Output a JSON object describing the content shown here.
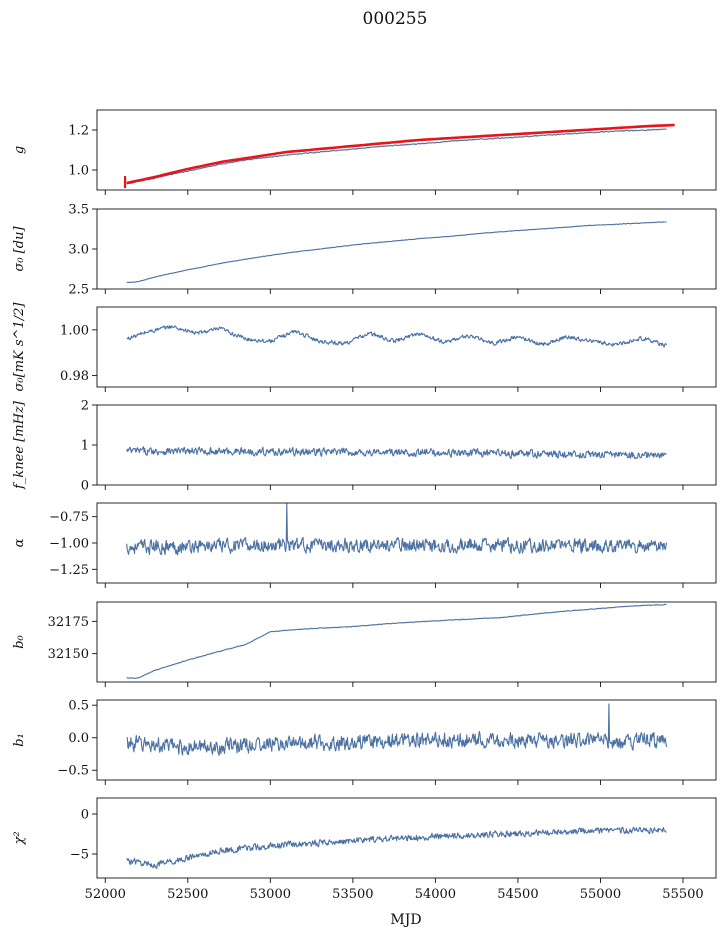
{
  "title": "000255",
  "colors": {
    "series": "#4c72a4",
    "fit": "#e8141a",
    "axis": "#111111"
  },
  "chart_data": [
    {
      "type": "line",
      "id": "g",
      "ylabel": "g",
      "ylim": [
        0.9,
        1.3
      ],
      "yticks": [
        1.0,
        1.2
      ],
      "ytick_labels": [
        "1.0",
        "1.2"
      ],
      "series": [
        {
          "x": [
            52130,
            52300,
            52500,
            52700,
            52900,
            53100,
            53300,
            53500,
            53700,
            53900,
            54100,
            54300,
            54500,
            54700,
            54900,
            55100,
            55300,
            55400
          ],
          "values": [
            0.93,
            0.96,
            0.995,
            1.03,
            1.055,
            1.075,
            1.09,
            1.105,
            1.12,
            1.13,
            1.145,
            1.155,
            1.165,
            1.175,
            1.185,
            1.195,
            1.2,
            1.205
          ],
          "color": "#4c72a4",
          "noise": 0.003
        },
        {
          "x": [
            52130,
            52300,
            52500,
            52700,
            52900,
            53100,
            53300,
            53500,
            53700,
            53900,
            54100,
            54300,
            54500,
            54700,
            54900,
            55100,
            55300,
            55450
          ],
          "values": [
            0.935,
            0.965,
            1.005,
            1.04,
            1.065,
            1.09,
            1.105,
            1.12,
            1.135,
            1.15,
            1.16,
            1.17,
            1.18,
            1.19,
            1.2,
            1.21,
            1.22,
            1.225
          ],
          "color": "#e8141a",
          "width": 2.6,
          "noise": 0
        }
      ],
      "errorbar": {
        "x": 52120,
        "y": 0.94,
        "err": 0.03
      }
    },
    {
      "type": "line",
      "id": "sigma0_du",
      "ylabel": "σ₀ [du]",
      "ylim": [
        2.5,
        3.5
      ],
      "yticks": [
        2.5,
        3.0,
        3.5
      ],
      "ytick_labels": [
        "2.5",
        "3.0",
        "3.5"
      ],
      "series": [
        {
          "x": [
            52130,
            52200,
            52300,
            52500,
            52700,
            52900,
            53100,
            53300,
            53500,
            53700,
            53900,
            54100,
            54300,
            54500,
            54700,
            54900,
            55100,
            55300,
            55400
          ],
          "values": [
            2.58,
            2.59,
            2.65,
            2.74,
            2.82,
            2.89,
            2.95,
            3.0,
            3.05,
            3.09,
            3.13,
            3.16,
            3.2,
            3.23,
            3.26,
            3.29,
            3.31,
            3.33,
            3.34
          ],
          "color": "#4c72a4",
          "noise": 0.004
        }
      ]
    },
    {
      "type": "line",
      "id": "sigma0_mK",
      "ylabel": "σ₀[mK s^1/2]",
      "ylim": [
        0.975,
        1.01
      ],
      "yticks": [
        0.98,
        1.0
      ],
      "ytick_labels": [
        "0.98",
        "1.00"
      ],
      "series": [
        {
          "x": [
            52130,
            52250,
            52400,
            52550,
            52700,
            52850,
            53000,
            53150,
            53300,
            53450,
            53600,
            53750,
            53900,
            54050,
            54200,
            54350,
            54500,
            54650,
            54800,
            54950,
            55100,
            55250,
            55400
          ],
          "values": [
            0.996,
            0.999,
            1.0015,
            0.9985,
            1.0005,
            0.996,
            0.995,
            0.9995,
            0.995,
            0.994,
            0.9985,
            0.995,
            0.9985,
            0.9945,
            0.9975,
            0.994,
            0.997,
            0.9935,
            0.997,
            0.995,
            0.9935,
            0.9965,
            0.993
          ],
          "color": "#4c72a4",
          "noise": 0.0012
        }
      ]
    },
    {
      "type": "line",
      "id": "fknee",
      "ylabel": "f_knee [mHz]",
      "ylim": [
        0,
        2
      ],
      "yticks": [
        0,
        1,
        2
      ],
      "ytick_labels": [
        "0",
        "1",
        "2"
      ],
      "series": [
        {
          "x": [
            52130,
            52800,
            53500,
            54200,
            54900,
            55400
          ],
          "values": [
            0.85,
            0.84,
            0.82,
            0.8,
            0.76,
            0.74
          ],
          "color": "#4c72a4",
          "noise": 0.13
        }
      ]
    },
    {
      "type": "line",
      "id": "alpha",
      "ylabel": "α",
      "ylim": [
        -1.38,
        -0.62
      ],
      "yticks": [
        -1.25,
        -1.0,
        -0.75
      ],
      "ytick_labels": [
        "−1.25",
        "−1.00",
        "−0.75"
      ],
      "series": [
        {
          "x": [
            52130,
            53000,
            54000,
            55400
          ],
          "values": [
            -1.04,
            -1.02,
            -1.02,
            -1.03
          ],
          "color": "#4c72a4",
          "noise": 0.09,
          "spike": {
            "x": 53100,
            "y": -0.6
          }
        }
      ]
    },
    {
      "type": "line",
      "id": "b0",
      "ylabel": "b₀",
      "ylim": [
        32128,
        32190
      ],
      "yticks": [
        32150,
        32175
      ],
      "ytick_labels": [
        "32150",
        "32175"
      ],
      "series": [
        {
          "x": [
            52130,
            52200,
            52300,
            52500,
            52700,
            52850,
            53000,
            53200,
            53500,
            53800,
            54100,
            54400,
            54700,
            55000,
            55200,
            55400
          ],
          "values": [
            32131,
            32131,
            32137,
            32145,
            32152,
            32157,
            32167,
            32169,
            32171,
            32174,
            32176,
            32178,
            32182,
            32185,
            32187,
            32188
          ],
          "color": "#4c72a4",
          "noise": 0.35
        }
      ]
    },
    {
      "type": "line",
      "id": "b1",
      "ylabel": "b₁",
      "ylim": [
        -0.65,
        0.58
      ],
      "yticks": [
        -0.5,
        0.0,
        0.5
      ],
      "ytick_labels": [
        "−0.5",
        "0.0",
        "0.5"
      ],
      "series": [
        {
          "x": [
            52130,
            52500,
            53000,
            54000,
            55000,
            55400
          ],
          "values": [
            -0.08,
            -0.15,
            -0.1,
            -0.03,
            -0.05,
            -0.04
          ],
          "color": "#4c72a4",
          "noise": 0.16,
          "spike": {
            "x": 55050,
            "y": 0.52
          }
        }
      ]
    },
    {
      "type": "line",
      "id": "chi2",
      "ylabel": "χ²",
      "ylim": [
        -8,
        2
      ],
      "yticks": [
        -5,
        0
      ],
      "ytick_labels": [
        "−5",
        "0"
      ],
      "series": [
        {
          "x": [
            52130,
            52300,
            52500,
            52700,
            53000,
            53300,
            53600,
            54000,
            54400,
            54800,
            55200,
            55400
          ],
          "values": [
            -5.8,
            -6.4,
            -5.5,
            -4.6,
            -4.0,
            -3.6,
            -3.2,
            -2.8,
            -2.5,
            -2.2,
            -2.0,
            -1.9
          ],
          "color": "#4c72a4",
          "noise": 0.55
        }
      ]
    }
  ],
  "xaxis": {
    "label": "MJD",
    "xlim": [
      51950,
      55700
    ],
    "ticks": [
      52000,
      52500,
      53000,
      53500,
      54000,
      54500,
      55000,
      55500
    ],
    "tick_labels": [
      "52000",
      "52500",
      "53000",
      "53500",
      "54000",
      "54500",
      "55000",
      "55500"
    ]
  }
}
